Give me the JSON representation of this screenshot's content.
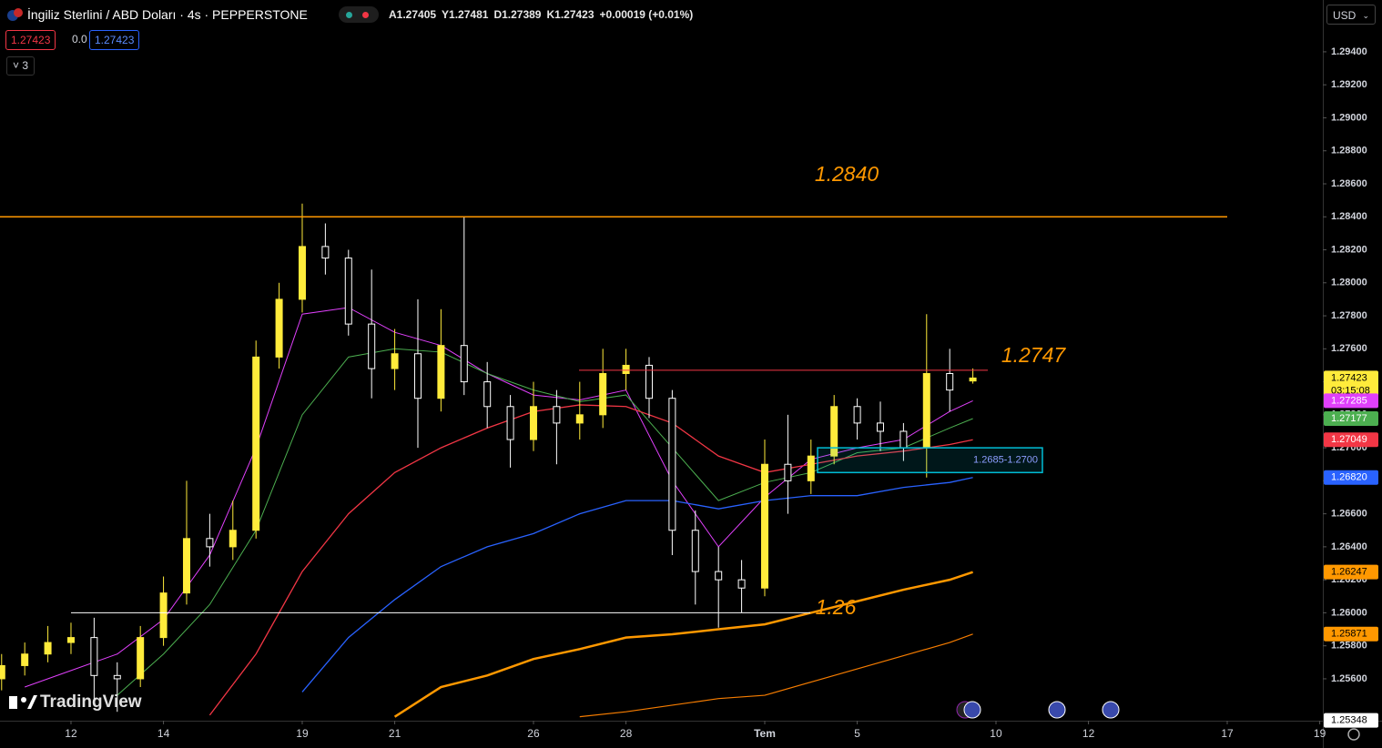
{
  "header": {
    "symbol": "İngiliz Sterlini / ABD Doları · 4s · PEPPERSTONE",
    "ohlc": [
      "A1.27405",
      "Y1.27481",
      "D1.27389",
      "K1.27423",
      "+0.00019 (+0.01%)"
    ],
    "sell": "1.27423",
    "spread": "0.0",
    "buy": "1.27423",
    "indicators_count": "3",
    "currency": "USD"
  },
  "watermark": "TradingView",
  "chart_data": {
    "type": "candlestick",
    "up_color": "#ffeb3b",
    "down_color": "#ffffff",
    "t": [
      -1.5,
      -1,
      -0.5,
      0,
      0.5,
      1,
      1.5,
      2,
      2.5,
      3,
      3.5,
      4,
      4.5,
      5,
      5.5,
      6,
      6.5,
      7,
      7.5,
      8,
      8.5,
      9,
      9.5,
      10,
      10.5,
      11,
      11.5,
      12,
      12.5,
      13,
      13.5,
      14,
      14.5,
      15,
      15.5,
      16,
      16.5,
      17,
      17.5,
      18,
      18.5,
      19,
      19.5
    ],
    "open": [
      1.256,
      1.2568,
      1.2575,
      1.2582,
      1.2585,
      1.2562,
      1.256,
      1.2585,
      1.2612,
      1.2645,
      1.264,
      1.265,
      1.2755,
      1.279,
      1.2822,
      1.2815,
      1.2775,
      1.2748,
      1.2757,
      1.273,
      1.2762,
      1.274,
      1.2725,
      1.2705,
      1.2725,
      1.2715,
      1.272,
      1.2745,
      1.275,
      1.273,
      1.265,
      1.2625,
      1.262,
      1.2615,
      1.269,
      1.268,
      1.2695,
      1.2725,
      1.2715,
      1.271,
      1.27,
      1.2745,
      1.27405
    ],
    "high": [
      1.2575,
      1.2582,
      1.2592,
      1.2594,
      1.2597,
      1.257,
      1.2592,
      1.2622,
      1.268,
      1.266,
      1.2668,
      1.2765,
      1.28,
      1.2848,
      1.2836,
      1.282,
      1.2808,
      1.2772,
      1.279,
      1.2784,
      1.284,
      1.2752,
      1.2732,
      1.274,
      1.2735,
      1.274,
      1.276,
      1.276,
      1.2755,
      1.2735,
      1.2662,
      1.264,
      1.2632,
      1.2705,
      1.272,
      1.2705,
      1.2732,
      1.273,
      1.2728,
      1.2715,
      1.2781,
      1.276,
      1.27481
    ],
    "low": [
      1.2553,
      1.2562,
      1.257,
      1.2575,
      1.2545,
      1.254,
      1.2555,
      1.258,
      1.2605,
      1.2628,
      1.2632,
      1.2645,
      1.2748,
      1.2782,
      1.2805,
      1.2768,
      1.273,
      1.2735,
      1.27,
      1.2722,
      1.2732,
      1.2712,
      1.2688,
      1.2698,
      1.269,
      1.2705,
      1.2712,
      1.2735,
      1.2718,
      1.2635,
      1.2605,
      1.2591,
      1.26,
      1.261,
      1.266,
      1.2672,
      1.269,
      1.2705,
      1.2698,
      1.2692,
      1.2682,
      1.2722,
      1.27389
    ],
    "close": [
      1.2568,
      1.2575,
      1.2582,
      1.2585,
      1.2562,
      1.256,
      1.2585,
      1.2612,
      1.2645,
      1.264,
      1.265,
      1.2755,
      1.279,
      1.2822,
      1.2815,
      1.2775,
      1.2748,
      1.2757,
      1.273,
      1.2762,
      1.274,
      1.2725,
      1.2705,
      1.2725,
      1.2715,
      1.272,
      1.2745,
      1.275,
      1.273,
      1.265,
      1.2625,
      1.262,
      1.2615,
      1.269,
      1.268,
      1.2695,
      1.2725,
      1.2715,
      1.271,
      1.27,
      1.2745,
      1.2735,
      1.27423
    ],
    "moving_averages": {
      "t": [
        -1,
        0,
        1,
        2,
        3,
        4,
        5,
        6,
        7,
        8,
        9,
        10,
        11,
        12,
        13,
        14,
        15,
        16,
        17,
        18,
        19,
        19.5
      ],
      "series": [
        {
          "color": "#e040fb",
          "line_width": 1,
          "values": [
            1.2555,
            1.2565,
            1.2575,
            1.2596,
            1.2635,
            1.27,
            1.2781,
            1.2785,
            1.277,
            1.2762,
            1.2745,
            1.2732,
            1.2729,
            1.2735,
            1.268,
            1.264,
            1.267,
            1.2693,
            1.27,
            1.2705,
            1.2722,
            1.27285
          ]
        },
        {
          "color": "#4caf50",
          "line_width": 1,
          "values": [
            null,
            null,
            1.255,
            1.2575,
            1.2605,
            1.265,
            1.272,
            1.2755,
            1.276,
            1.2758,
            1.2745,
            1.2735,
            1.2728,
            1.2732,
            1.27,
            1.2668,
            1.2679,
            1.2685,
            1.2697,
            1.27,
            1.2712,
            1.27177
          ]
        },
        {
          "color": "#f23645",
          "line_width": 1.3,
          "values": [
            null,
            null,
            null,
            null,
            1.2538,
            1.2575,
            1.2625,
            1.266,
            1.2685,
            1.27,
            1.2712,
            1.2722,
            1.2726,
            1.2725,
            1.2715,
            1.2695,
            1.2685,
            1.269,
            1.2695,
            1.2698,
            1.2702,
            1.27049
          ]
        },
        {
          "color": "#2962ff",
          "line_width": 1.3,
          "values": [
            null,
            null,
            null,
            null,
            null,
            null,
            1.2552,
            1.2585,
            1.2608,
            1.2628,
            1.264,
            1.2648,
            1.266,
            1.2668,
            1.2668,
            1.2663,
            1.2668,
            1.2671,
            1.2671,
            1.2676,
            1.2679,
            1.2682
          ]
        },
        {
          "color": "#ff9800",
          "line_width": 2.5,
          "values": [
            null,
            null,
            null,
            null,
            null,
            null,
            null,
            null,
            1.2537,
            1.2555,
            1.2562,
            1.2572,
            1.2578,
            1.2585,
            1.2587,
            1.259,
            1.2593,
            1.26,
            1.2607,
            1.2614,
            1.262,
            1.26247
          ]
        },
        {
          "color": "#f57c00",
          "line_width": 1.2,
          "values": [
            null,
            null,
            null,
            null,
            null,
            null,
            null,
            null,
            null,
            null,
            null,
            null,
            1.2537,
            1.254,
            1.2544,
            1.2548,
            1.255,
            1.2558,
            1.2566,
            1.2574,
            1.2582,
            1.25871
          ]
        }
      ]
    },
    "levels": [
      {
        "value": 1.284,
        "label": "1.2840",
        "color": "#ff9800"
      },
      {
        "value": 1.2747,
        "label": "1.2747",
        "color": "#f23645"
      },
      {
        "value": 1.26,
        "label": "1.26",
        "color": "#ffffff"
      }
    ],
    "zone": {
      "low": 1.2685,
      "high": 1.27,
      "label": "1.2685-1.2700",
      "color": "#00bcd4"
    },
    "xlim": [
      -1.535,
      27.067
    ],
    "xticks": [
      {
        "value": 0,
        "label": "12"
      },
      {
        "value": 2,
        "label": "14"
      },
      {
        "value": 5,
        "label": "19"
      },
      {
        "value": 7,
        "label": "21"
      },
      {
        "value": 10,
        "label": "26"
      },
      {
        "value": 12,
        "label": "28"
      },
      {
        "value": 15,
        "label": "Tem"
      },
      {
        "value": 17,
        "label": "5"
      },
      {
        "value": 20,
        "label": "10"
      },
      {
        "value": 22,
        "label": "12"
      },
      {
        "value": 25,
        "label": "17"
      },
      {
        "value": 27,
        "label": "19"
      }
    ],
    "ylim": [
      1.25346,
      1.29714
    ],
    "yticks": [
      {
        "value": 1.294,
        "label": "1.29400"
      },
      {
        "value": 1.292,
        "label": "1.29200"
      },
      {
        "value": 1.29,
        "label": "1.29000"
      },
      {
        "value": 1.288,
        "label": "1.28800"
      },
      {
        "value": 1.286,
        "label": "1.28600"
      },
      {
        "value": 1.284,
        "label": "1.28400"
      },
      {
        "value": 1.282,
        "label": "1.28200"
      },
      {
        "value": 1.28,
        "label": "1.28000"
      },
      {
        "value": 1.278,
        "label": "1.27800"
      },
      {
        "value": 1.276,
        "label": "1.27600"
      },
      {
        "value": 1.274,
        "label": "1.27400"
      },
      {
        "value": 1.272,
        "label": "1.27200"
      },
      {
        "value": 1.27,
        "label": "1.27000"
      },
      {
        "value": 1.268,
        "label": "1.26800"
      },
      {
        "value": 1.266,
        "label": "1.26600"
      },
      {
        "value": 1.264,
        "label": "1.26400"
      },
      {
        "value": 1.262,
        "label": "1.26200"
      },
      {
        "value": 1.26,
        "label": "1.26000"
      },
      {
        "value": 1.258,
        "label": "1.25800"
      },
      {
        "value": 1.256,
        "label": "1.25600"
      }
    ],
    "price_badges": [
      {
        "value": 1.27423,
        "label": "1.27423",
        "color": "#ffeb3b",
        "text_color": "#000000"
      },
      {
        "value": 1.27285,
        "label": "1.27285",
        "color": "#e040fb",
        "text_color": "#ffffff"
      },
      {
        "value": 1.27177,
        "label": "1.27177",
        "color": "#4caf50",
        "text_color": "#ffffff"
      },
      {
        "value": 1.27049,
        "label": "1.27049",
        "color": "#f23645",
        "text_color": "#ffffff"
      },
      {
        "value": 1.2682,
        "label": "1.26820",
        "color": "#2962ff",
        "text_color": "#ffffff"
      },
      {
        "value": 1.26247,
        "label": "1.26247",
        "color": "#ff9800",
        "text_color": "#000000"
      },
      {
        "value": 1.25871,
        "label": "1.25871",
        "color": "#ff9800",
        "text_color": "#000000"
      },
      {
        "value": 1.25348,
        "label": "1.25348",
        "color": "#ffffff",
        "text_color": "#000000"
      }
    ],
    "countdown": "03:15:08"
  }
}
